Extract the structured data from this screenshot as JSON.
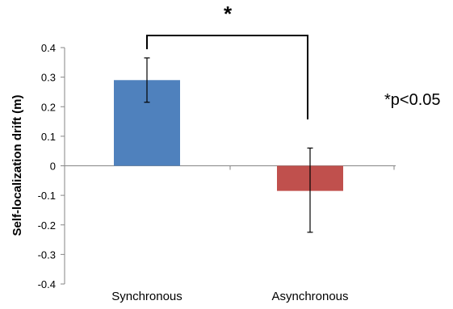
{
  "chart_data": {
    "type": "bar",
    "categories": [
      "Synchronous",
      "Asynchronous"
    ],
    "series": [
      {
        "values": [
          0.29,
          -0.085
        ],
        "error_low": [
          0.215,
          -0.225
        ],
        "error_high": [
          0.365,
          0.06
        ],
        "colors": [
          "#4f81bd",
          "#c0504d"
        ]
      }
    ],
    "title": "",
    "xlabel": "",
    "ylabel": "Self-localization drift (m)",
    "ylim": [
      -0.4,
      0.4
    ],
    "yticks": [
      "0.4",
      "0.3",
      "0.2",
      "0.1",
      "0",
      "-0.1",
      "-0.2",
      "-0.3",
      "-0.4"
    ],
    "grid": false,
    "legend": "none",
    "annotations": {
      "significance_marker": "*",
      "note": "*p<0.05"
    }
  }
}
